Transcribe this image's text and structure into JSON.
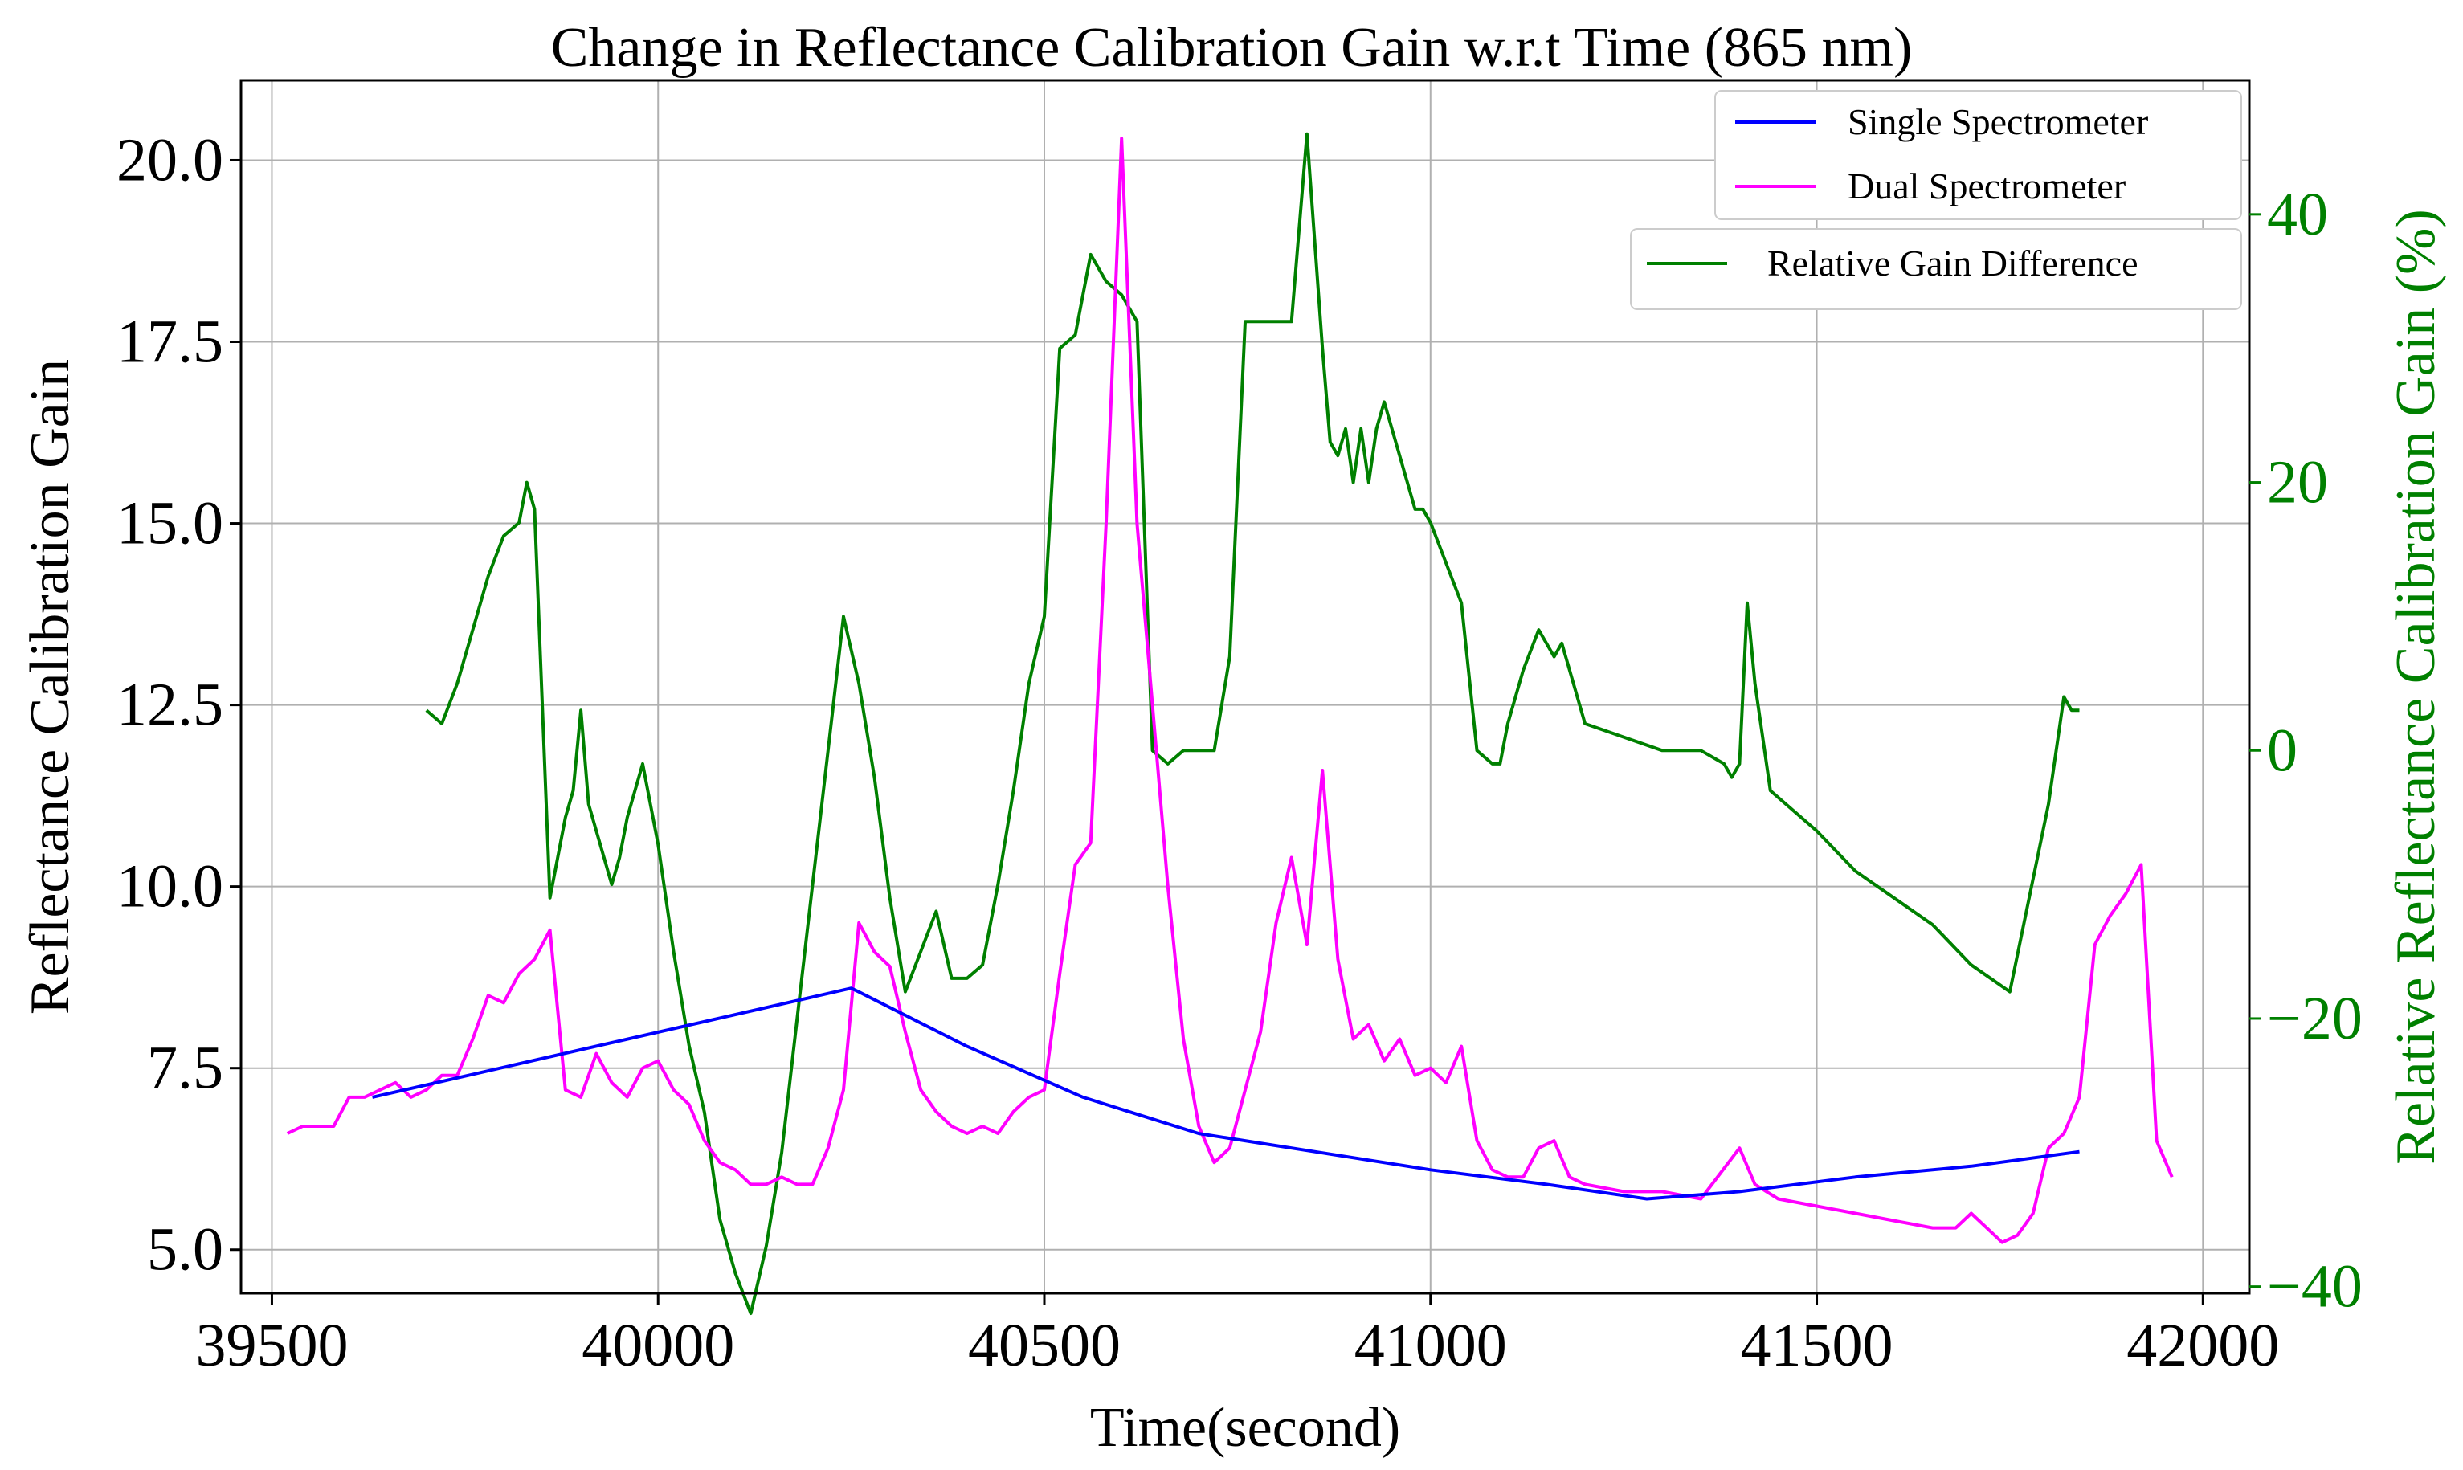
{
  "chart_data": {
    "type": "line",
    "title": "Change in Reflectance Calibration Gain w.r.t Time (865 nm)",
    "xlabel": "Time(second)",
    "ylabel": "Reflectance Calibration Gain",
    "ylabel_right": "Relative Reflectance Calibration Gain (%)",
    "xlim": [
      39460,
      42060
    ],
    "ylim": [
      4.4,
      21.1
    ],
    "ylim_right": [
      -40.5,
      50.0
    ],
    "grid": true,
    "legend_position": "top-right",
    "x_ticks": [
      39500,
      40000,
      40500,
      41000,
      41500,
      42000
    ],
    "x_tick_labels": [
      "39500",
      "40000",
      "40500",
      "41000",
      "41500",
      "42000"
    ],
    "y_ticks": [
      5.0,
      7.5,
      10.0,
      12.5,
      15.0,
      17.5,
      20.0
    ],
    "y_tick_labels": [
      "5.0",
      "7.5",
      "10.0",
      "12.5",
      "15.0",
      "17.5",
      "20.0"
    ],
    "y_ticks_right": [
      -40,
      -20,
      0,
      20,
      40
    ],
    "y_tick_labels_right": [
      "−40",
      "−20",
      "0",
      "20",
      "40"
    ],
    "series": [
      {
        "name": "Single Spectrometer",
        "axis": "left",
        "color": "#0000ff",
        "x": [
          39630,
          40250,
          40260,
          40400,
          40550,
          40700,
          40850,
          41000,
          41150,
          41280,
          41400,
          41550,
          41700,
          41840
        ],
        "y": [
          7.1,
          8.6,
          8.55,
          7.8,
          7.1,
          6.6,
          6.35,
          6.1,
          5.9,
          5.7,
          5.8,
          6.0,
          6.15,
          6.35
        ]
      },
      {
        "name": "Dual Spectrometer",
        "axis": "left",
        "color": "#ff00ff",
        "x": [
          39520,
          39540,
          39560,
          39580,
          39600,
          39620,
          39640,
          39660,
          39680,
          39700,
          39720,
          39740,
          39760,
          39780,
          39800,
          39820,
          39840,
          39860,
          39880,
          39900,
          39920,
          39940,
          39960,
          39980,
          40000,
          40020,
          40040,
          40060,
          40080,
          40100,
          40120,
          40140,
          40160,
          40180,
          40200,
          40220,
          40240,
          40260,
          40280,
          40300,
          40320,
          40340,
          40360,
          40380,
          40400,
          40420,
          40440,
          40460,
          40480,
          40500,
          40520,
          40540,
          40560,
          40580,
          40600,
          40620,
          40640,
          40660,
          40680,
          40700,
          40720,
          40740,
          40760,
          40780,
          40800,
          40820,
          40840,
          40860,
          40880,
          40900,
          40920,
          40940,
          40960,
          40980,
          41000,
          41020,
          41040,
          41060,
          41080,
          41100,
          41120,
          41140,
          41160,
          41180,
          41200,
          41250,
          41300,
          41350,
          41400,
          41420,
          41450,
          41500,
          41550,
          41600,
          41650,
          41680,
          41700,
          41720,
          41740,
          41760,
          41780,
          41800,
          41820,
          41840,
          41860,
          41880,
          41900,
          41920,
          41940,
          41960
        ],
        "y": [
          6.6,
          6.7,
          6.7,
          6.7,
          7.1,
          7.1,
          7.2,
          7.3,
          7.1,
          7.2,
          7.4,
          7.4,
          7.9,
          8.5,
          8.4,
          8.8,
          9.0,
          9.4,
          7.2,
          7.1,
          7.7,
          7.3,
          7.1,
          7.5,
          7.6,
          7.2,
          7.0,
          6.5,
          6.2,
          6.1,
          5.9,
          5.9,
          6.0,
          5.9,
          5.9,
          6.4,
          7.2,
          9.5,
          9.1,
          8.9,
          8.0,
          7.2,
          6.9,
          6.7,
          6.6,
          6.7,
          6.6,
          6.9,
          7.1,
          7.2,
          8.8,
          10.3,
          10.6,
          15.0,
          20.3,
          15.0,
          12.5,
          10.0,
          7.9,
          6.7,
          6.2,
          6.4,
          7.2,
          8.0,
          9.5,
          10.4,
          9.2,
          11.6,
          9.0,
          7.9,
          8.1,
          7.6,
          7.9,
          7.4,
          7.5,
          7.3,
          7.8,
          6.5,
          6.1,
          6.0,
          6.0,
          6.4,
          6.5,
          6.0,
          5.9,
          5.8,
          5.8,
          5.7,
          6.4,
          5.9,
          5.7,
          5.6,
          5.5,
          5.4,
          5.3,
          5.3,
          5.5,
          5.3,
          5.1,
          5.2,
          5.5,
          6.4,
          6.6,
          7.1,
          9.2,
          9.6,
          9.9,
          10.3,
          6.5,
          6.0
        ]
      },
      {
        "name": "Relative Gain Difference",
        "axis": "right",
        "color": "#008000",
        "x": [
          39700,
          39720,
          39740,
          39760,
          39780,
          39800,
          39820,
          39830,
          39840,
          39860,
          39870,
          39880,
          39890,
          39900,
          39910,
          39920,
          39930,
          39940,
          39950,
          39960,
          39980,
          40000,
          40020,
          40040,
          40060,
          40080,
          40100,
          40120,
          40140,
          40160,
          40180,
          40200,
          40220,
          40240,
          40260,
          40280,
          40300,
          40320,
          40340,
          40360,
          40380,
          40400,
          40420,
          40440,
          40460,
          40480,
          40500,
          40520,
          40540,
          40560,
          40580,
          40600,
          40620,
          40640,
          40660,
          40680,
          40700,
          40720,
          40740,
          40760,
          40780,
          40800,
          40820,
          40840,
          40860,
          40870,
          40880,
          40890,
          40900,
          40910,
          40920,
          40930,
          40940,
          40950,
          40960,
          40970,
          40980,
          40990,
          41000,
          41020,
          41040,
          41060,
          41080,
          41090,
          41100,
          41120,
          41140,
          41150,
          41160,
          41170,
          41180,
          41200,
          41250,
          41300,
          41350,
          41380,
          41390,
          41400,
          41410,
          41420,
          41440,
          41460,
          41500,
          41550,
          41600,
          41650,
          41700,
          41750,
          41800,
          41820,
          41830,
          41840
        ],
        "y": [
          3,
          2,
          5,
          9,
          13,
          16,
          17,
          20,
          18,
          -11,
          -8,
          -5,
          -3,
          3,
          -4,
          -6,
          -8,
          -10,
          -8,
          -5,
          -1,
          -7,
          -15,
          -22,
          -27,
          -35,
          -39,
          -42,
          -37,
          -30,
          -20,
          -10,
          0,
          10,
          5,
          -2,
          -11,
          -18,
          -15,
          -12,
          -17,
          -17,
          -16,
          -10,
          -3,
          5,
          10,
          30,
          31,
          37,
          35,
          34,
          32,
          0,
          -1,
          0,
          0,
          0,
          7,
          32,
          32,
          32,
          32,
          46,
          30,
          23,
          22,
          24,
          20,
          24,
          20,
          24,
          26,
          24,
          22,
          20,
          18,
          18,
          17,
          14,
          11,
          0,
          -1,
          -1,
          2,
          6,
          9,
          8,
          7,
          8,
          6,
          2,
          1,
          0,
          0,
          -1,
          -2,
          -1,
          11,
          5,
          -3,
          -4,
          -6,
          -9,
          -11,
          -13,
          -16,
          -18,
          -4,
          4,
          3,
          3
        ]
      }
    ]
  }
}
